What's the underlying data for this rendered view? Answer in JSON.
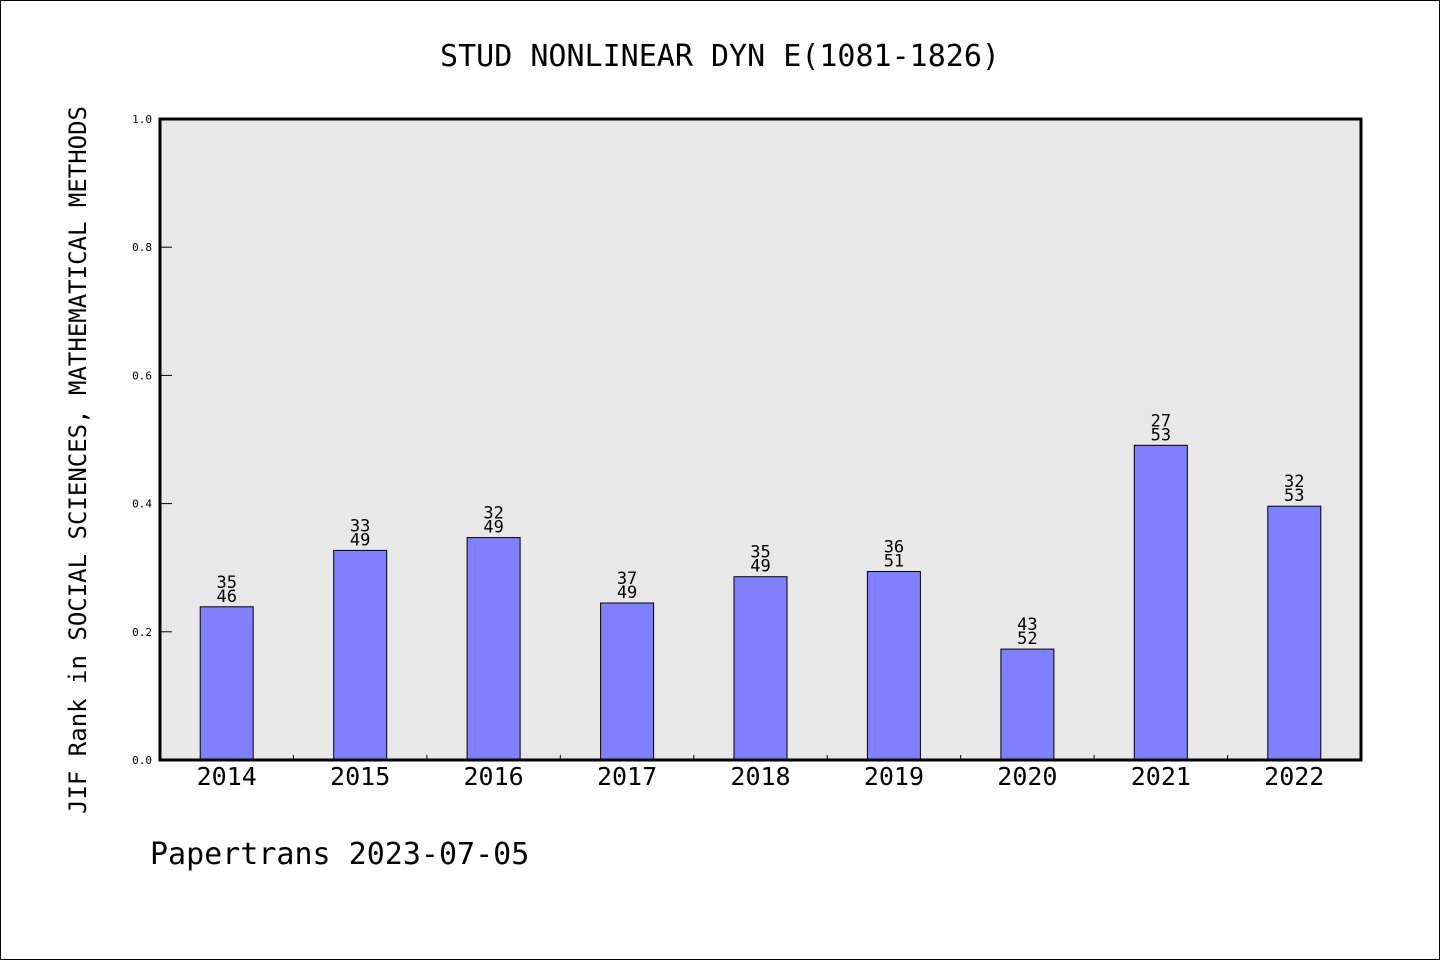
{
  "chart_data": {
    "type": "bar",
    "title": "STUD NONLINEAR DYN E(1081-1826)",
    "ylabel": "JIF Rank in SOCIAL SCIENCES, MATHEMATICAL METHODS",
    "xlabel": "",
    "ylim": [
      0,
      1.0
    ],
    "yticks": [
      "0.0",
      "0.2",
      "0.4",
      "0.6",
      "0.8",
      "1.0"
    ],
    "categories": [
      "2014",
      "2015",
      "2016",
      "2017",
      "2018",
      "2019",
      "2020",
      "2021",
      "2022"
    ],
    "values": [
      0.239,
      0.327,
      0.347,
      0.245,
      0.286,
      0.294,
      0.173,
      0.491,
      0.396
    ],
    "labels_top": [
      "35",
      "33",
      "32",
      "37",
      "35",
      "36",
      "43",
      "27",
      "32"
    ],
    "labels_bottom": [
      "46",
      "49",
      "49",
      "49",
      "49",
      "51",
      "52",
      "53",
      "53"
    ],
    "bar_color": "#8080ff",
    "plot_background": "#e8e8e8",
    "grid": false,
    "footer": "Papertrans 2023-07-05"
  }
}
